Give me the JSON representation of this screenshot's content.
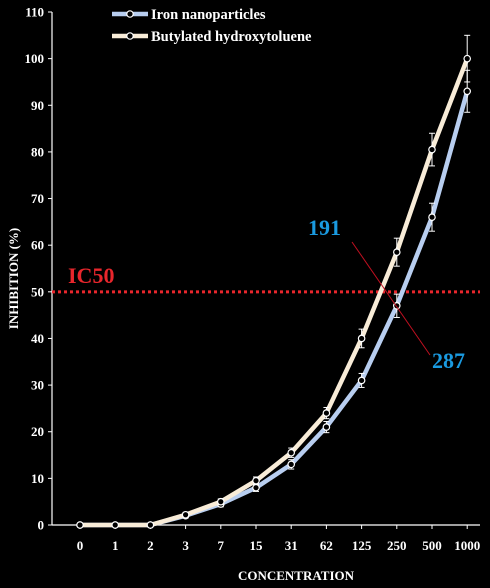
{
  "chart_data": {
    "type": "line",
    "xlabel": "CONCENTRATION",
    "ylabel": "INHIBITION (%)",
    "categories": [
      "0",
      "1",
      "2",
      "3",
      "7",
      "15",
      "31",
      "62",
      "125",
      "250",
      "500",
      "1000"
    ],
    "ylim": [
      0,
      110
    ],
    "yticks": [
      0,
      10,
      20,
      30,
      40,
      50,
      60,
      70,
      80,
      90,
      100,
      110
    ],
    "grid": false,
    "legend": "top-left",
    "series": [
      {
        "name": "Iron nanoparticles",
        "color": "#b8cef0",
        "values": [
          0,
          0,
          0,
          2,
          4.5,
          8,
          13,
          21,
          31,
          47,
          66,
          93
        ],
        "errors": [
          0,
          0,
          0,
          0.5,
          0.6,
          0.8,
          1,
          1.2,
          1.5,
          2.5,
          3,
          4.5
        ]
      },
      {
        "name": "Butylated hydroxytoluene",
        "color": "#f8ecd8",
        "values": [
          0,
          0,
          0,
          2.2,
          5,
          9.5,
          15.5,
          24,
          40,
          58.5,
          80.5,
          100
        ],
        "errors": [
          0,
          0,
          0,
          0.5,
          0.6,
          0.8,
          1,
          1.2,
          2,
          3,
          3.5,
          5
        ]
      }
    ],
    "reference_line": {
      "label": "IC50",
      "value": 50,
      "color": "#e8262c"
    },
    "annotations": [
      {
        "text": "191",
        "color": "#1a9ae0"
      },
      {
        "text": "287",
        "color": "#1a9ae0"
      }
    ]
  }
}
